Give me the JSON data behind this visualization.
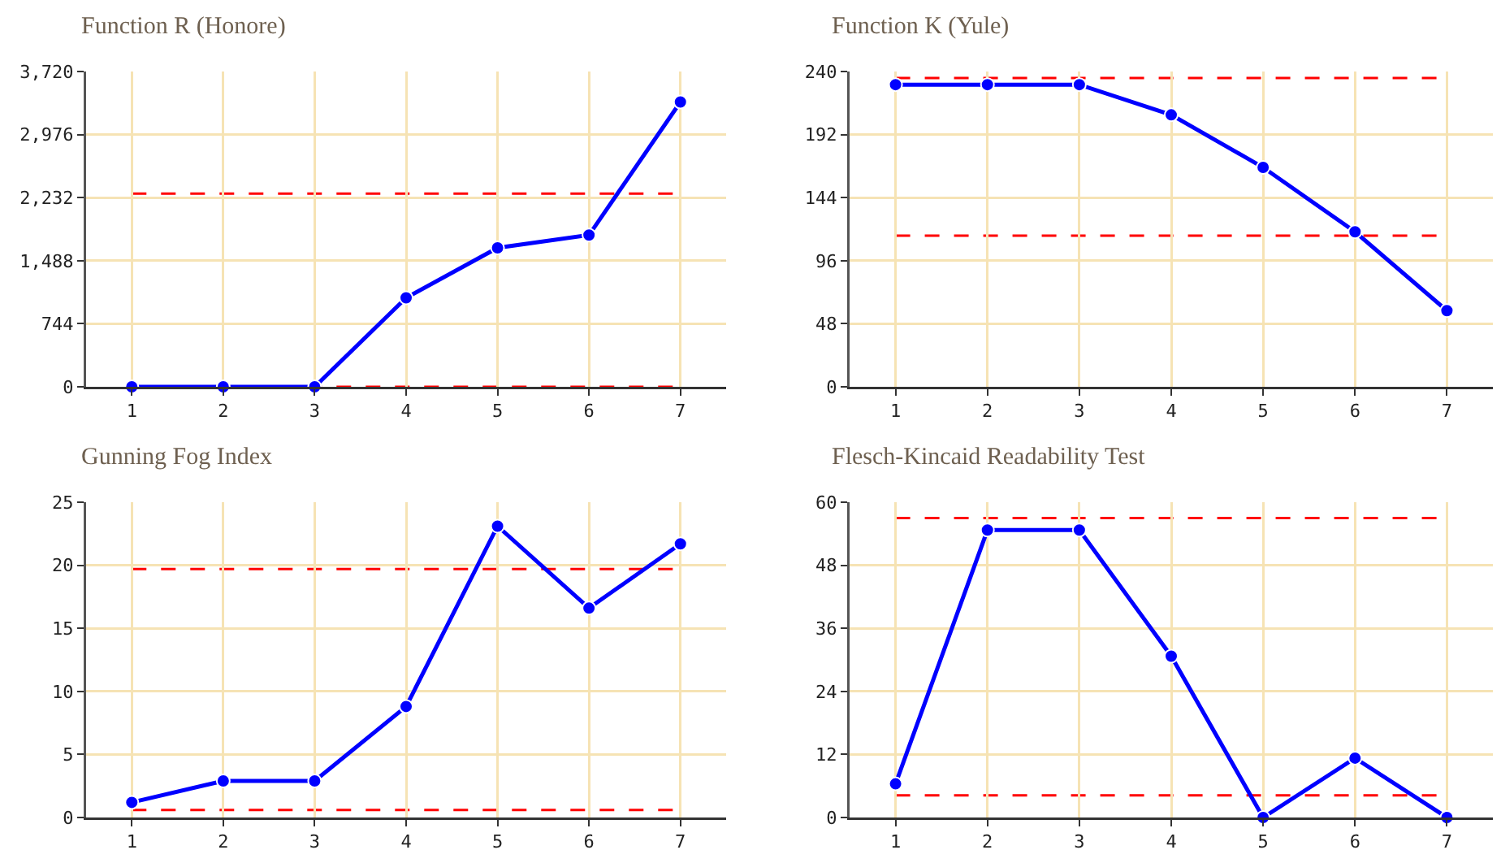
{
  "chart_data": [
    {
      "type": "line",
      "title": "Function R (Honore)",
      "x": [
        1,
        2,
        3,
        4,
        5,
        6,
        7
      ],
      "xlim": [
        0.5,
        7.5
      ],
      "xticks": [
        1,
        2,
        3,
        4,
        5,
        6,
        7
      ],
      "ylim": [
        0,
        3720
      ],
      "yticks": [
        0,
        744,
        {
          "value": 1488,
          "label": "1,488"
        },
        {
          "value": 2232,
          "label": "2,232"
        },
        {
          "value": 2976,
          "label": "2,976"
        },
        {
          "value": 3720,
          "label": "3,720"
        }
      ],
      "grid": true,
      "marker": "circle",
      "line_style": "solid",
      "series": [
        {
          "color": "#0000ff",
          "values": [
            0,
            0,
            0,
            1050,
            1640,
            1790,
            3360
          ]
        }
      ],
      "ref_lines": [
        {
          "axis": "y",
          "value": 2280,
          "color": "#ff0000",
          "line_style": "dashed"
        },
        {
          "axis": "y",
          "value": 0,
          "color": "#ff0000",
          "line_style": "dashed"
        }
      ]
    },
    {
      "type": "line",
      "title": "Function K (Yule)",
      "x": [
        1,
        2,
        3,
        4,
        5,
        6,
        7
      ],
      "xlim": [
        0.5,
        7.5
      ],
      "xticks": [
        1,
        2,
        3,
        4,
        5,
        6,
        7
      ],
      "ylim": [
        0,
        240
      ],
      "yticks": [
        0,
        48,
        96,
        144,
        192,
        240
      ],
      "grid": true,
      "marker": "circle",
      "line_style": "solid",
      "series": [
        {
          "color": "#0000ff",
          "values": [
            230,
            230,
            230,
            207,
            167,
            118,
            58
          ]
        }
      ],
      "ref_lines": [
        {
          "axis": "y",
          "value": 235,
          "color": "#ff0000",
          "line_style": "dashed"
        },
        {
          "axis": "y",
          "value": 115,
          "color": "#ff0000",
          "line_style": "dashed"
        }
      ]
    },
    {
      "type": "line",
      "title": "Gunning Fog Index",
      "x": [
        1,
        2,
        3,
        4,
        5,
        6,
        7
      ],
      "xlim": [
        0.5,
        7.5
      ],
      "xticks": [
        1,
        2,
        3,
        4,
        5,
        6,
        7
      ],
      "ylim": [
        0,
        25
      ],
      "yticks": [
        0,
        5,
        10,
        15,
        20,
        25
      ],
      "grid": true,
      "marker": "circle",
      "line_style": "solid",
      "series": [
        {
          "color": "#0000ff",
          "values": [
            1.2,
            2.9,
            2.9,
            8.8,
            23.1,
            16.6,
            21.7
          ]
        }
      ],
      "ref_lines": [
        {
          "axis": "y",
          "value": 19.7,
          "color": "#ff0000",
          "line_style": "dashed"
        },
        {
          "axis": "y",
          "value": 0.6,
          "color": "#ff0000",
          "line_style": "dashed"
        }
      ]
    },
    {
      "type": "line",
      "title": "Flesch-Kincaid Readability Test",
      "x": [
        1,
        2,
        3,
        4,
        5,
        6,
        7
      ],
      "xlim": [
        0.5,
        7.5
      ],
      "xticks": [
        1,
        2,
        3,
        4,
        5,
        6,
        7
      ],
      "ylim": [
        0,
        60
      ],
      "yticks": [
        0,
        12,
        24,
        36,
        48,
        60
      ],
      "grid": true,
      "marker": "circle",
      "line_style": "solid",
      "series": [
        {
          "color": "#0000ff",
          "values": [
            6.4,
            54.7,
            54.7,
            30.7,
            0,
            11.3,
            0
          ]
        }
      ],
      "ref_lines": [
        {
          "axis": "y",
          "value": 57,
          "color": "#ff0000",
          "line_style": "dashed"
        },
        {
          "axis": "y",
          "value": 4.2,
          "color": "#ff0000",
          "line_style": "dashed"
        }
      ]
    }
  ]
}
